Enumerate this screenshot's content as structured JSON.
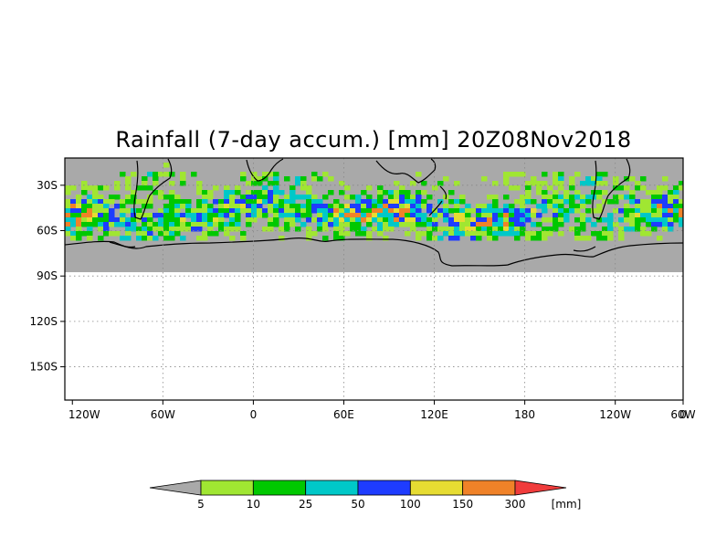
{
  "title": "Rainfall (7-day accum.) [mm] 20Z08Nov2018",
  "map": {
    "lat_ticks": [
      "30S",
      "60S",
      "90S",
      "120S",
      "150S"
    ],
    "lon_ticks": [
      "120W",
      "60W",
      "0",
      "60E",
      "120E",
      "180",
      "120W",
      "60W",
      "0"
    ],
    "lat_range_deg": [
      -172,
      -12
    ],
    "data_lat_range_deg": [
      -90,
      -12
    ],
    "lon_range_deg": [
      -125,
      285
    ],
    "grid": true,
    "grid_style": "dotted",
    "no_data_color": "#a9a9a9",
    "coastline_color": "#000000"
  },
  "legend": {
    "unit": "[mm]",
    "thresholds": [
      "5",
      "10",
      "25",
      "50",
      "100",
      "150",
      "300"
    ],
    "colors": [
      "#a9a9a9",
      "#a0e632",
      "#00c800",
      "#00c8c8",
      "#1e3cff",
      "#e6dc32",
      "#f08228",
      "#f03c3c"
    ],
    "placement": "bottom-center"
  }
}
